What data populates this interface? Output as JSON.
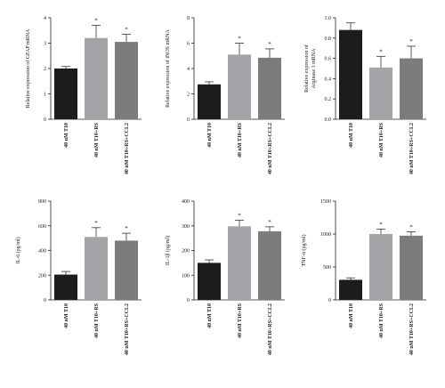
{
  "chart_data": [
    {
      "type": "bar",
      "ylabel": "Relative expression of GFAP mRNA",
      "ylim": [
        0,
        4
      ],
      "yticks": [
        "0",
        "1",
        "2",
        "3",
        "4"
      ],
      "categories": [
        "40 nM T10",
        "40 nM T10+RS",
        "40 nM T10+RS+CCL2"
      ],
      "values": [
        2.0,
        3.2,
        3.05
      ],
      "errors": [
        0.08,
        0.5,
        0.3
      ],
      "annotations": [
        "",
        "*",
        "*"
      ],
      "colors": [
        "#1c1c1c",
        "#a4a4a8",
        "#7c7c7c"
      ]
    },
    {
      "type": "bar",
      "ylabel": "Relative expression of iNOS mRNA",
      "ylim": [
        0,
        8
      ],
      "yticks": [
        "0",
        "2",
        "4",
        "6",
        "8"
      ],
      "categories": [
        "40 nM T10",
        "40 nM T10+RS",
        "40 nM T10+RS+CCL2"
      ],
      "values": [
        2.75,
        5.1,
        4.85
      ],
      "errors": [
        0.2,
        0.9,
        0.7
      ],
      "annotations": [
        "",
        "*",
        "*"
      ],
      "colors": [
        "#1c1c1c",
        "#a4a4a8",
        "#7c7c7c"
      ]
    },
    {
      "type": "bar",
      "ylabel": "Relative expression of Arginase 1 mRNA",
      "ylim": [
        0,
        1.0
      ],
      "yticks": [
        "0.0",
        "0.2",
        "0.4",
        "0.6",
        "0.8",
        "1.0"
      ],
      "categories": [
        "40 nM T10",
        "40 nM T10+RS",
        "40 nM T10+RS+CCL2"
      ],
      "values": [
        0.88,
        0.51,
        0.6
      ],
      "errors": [
        0.07,
        0.11,
        0.12
      ],
      "annotations": [
        "",
        "*",
        "*"
      ],
      "colors": [
        "#1c1c1c",
        "#a4a4a8",
        "#7c7c7c"
      ]
    },
    {
      "type": "bar",
      "ylabel": "IL-6 (pg/ml)",
      "ylim": [
        0,
        800
      ],
      "yticks": [
        "0",
        "200",
        "400",
        "600",
        "800"
      ],
      "categories": [
        "40 nM T10",
        "40 nM T10+RS",
        "40 nM T10+RS+CCL2"
      ],
      "values": [
        205,
        510,
        480
      ],
      "errors": [
        25,
        75,
        60
      ],
      "annotations": [
        "",
        "*",
        "*"
      ],
      "colors": [
        "#1c1c1c",
        "#a4a4a8",
        "#7c7c7c"
      ]
    },
    {
      "type": "bar",
      "ylabel": "IL-1β (pg/ml)",
      "ylim": [
        0,
        400
      ],
      "yticks": [
        "0",
        "100",
        "200",
        "300",
        "400"
      ],
      "categories": [
        "40 nM T10",
        "40 nM T10+RS",
        "40 nM T10+RS+CCL2"
      ],
      "values": [
        150,
        298,
        278
      ],
      "errors": [
        12,
        25,
        18
      ],
      "annotations": [
        "",
        "*",
        "*"
      ],
      "colors": [
        "#1c1c1c",
        "#a4a4a8",
        "#7c7c7c"
      ]
    },
    {
      "type": "bar",
      "ylabel": "TNF-α (pg/ml)",
      "ylim": [
        0,
        1500
      ],
      "yticks": [
        "0",
        "500",
        "1000",
        "1500"
      ],
      "categories": [
        "40 nM T10",
        "40 nM T10+RS",
        "40 nM T10+RS+CCL2"
      ],
      "values": [
        305,
        1000,
        975
      ],
      "errors": [
        30,
        75,
        60
      ],
      "annotations": [
        "",
        "*",
        "*"
      ],
      "colors": [
        "#1c1c1c",
        "#a4a4a8",
        "#7c7c7c"
      ]
    }
  ]
}
